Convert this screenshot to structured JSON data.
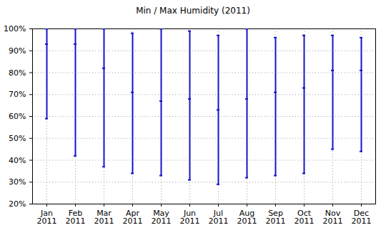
{
  "chart_data": {
    "type": "range",
    "title": "Min / Max Humidity (2011)",
    "categories": [
      "Jan\n2011",
      "Feb\n2011",
      "Mar\n2011",
      "Apr\n2011",
      "May\n2011",
      "Jun\n2011",
      "Jul\n2011",
      "Aug\n2011",
      "Sep\n2011",
      "Oct\n2011",
      "Nov\n2011",
      "Dec\n2011"
    ],
    "low": [
      59,
      42,
      37,
      34,
      33,
      31,
      29,
      32,
      33,
      34,
      45,
      44
    ],
    "values": [
      93,
      93,
      82,
      71,
      67,
      68,
      63,
      68,
      71,
      73,
      81,
      81
    ],
    "high": [
      100,
      100,
      100,
      98,
      100,
      99,
      97,
      100,
      96,
      97,
      97,
      96
    ],
    "color": "#1414c8",
    "marker": "tick",
    "ylim": [
      20,
      100
    ],
    "yticks": [
      {
        "value": 20,
        "label": "20%"
      },
      {
        "value": 30,
        "label": "30%"
      },
      {
        "value": 40,
        "label": "40%"
      },
      {
        "value": 50,
        "label": "50%"
      },
      {
        "value": 60,
        "label": "60%"
      },
      {
        "value": 70,
        "label": "70%"
      },
      {
        "value": 80,
        "label": "80%"
      },
      {
        "value": 90,
        "label": "90%"
      },
      {
        "value": 100,
        "label": "100%"
      }
    ],
    "grid": true
  }
}
